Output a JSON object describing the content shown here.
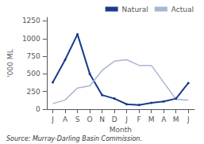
{
  "chart_data": {
    "type": "line",
    "xlabel": "Month",
    "ylabel": "'000 ML",
    "annotation": "Source: Murray-Darling Basin Commission.",
    "categories": [
      "J",
      "A",
      "S",
      "O",
      "N",
      "D",
      "J",
      "F",
      "M",
      "A",
      "M",
      "J"
    ],
    "series": [
      {
        "name": "Natural",
        "color": "#1a3a8c",
        "marker": "point",
        "values": [
          380,
          700,
          1060,
          500,
          200,
          150,
          70,
          60,
          90,
          110,
          150,
          370
        ]
      },
      {
        "name": "Actual",
        "color": "#aab4d4",
        "values": [
          80,
          130,
          300,
          330,
          550,
          680,
          700,
          620,
          620,
          380,
          140,
          130
        ]
      }
    ],
    "ylim": [
      0,
      1300
    ],
    "yticks": [
      0,
      250,
      500,
      750,
      1000,
      1250
    ],
    "grid": false,
    "legend": "upper right"
  }
}
